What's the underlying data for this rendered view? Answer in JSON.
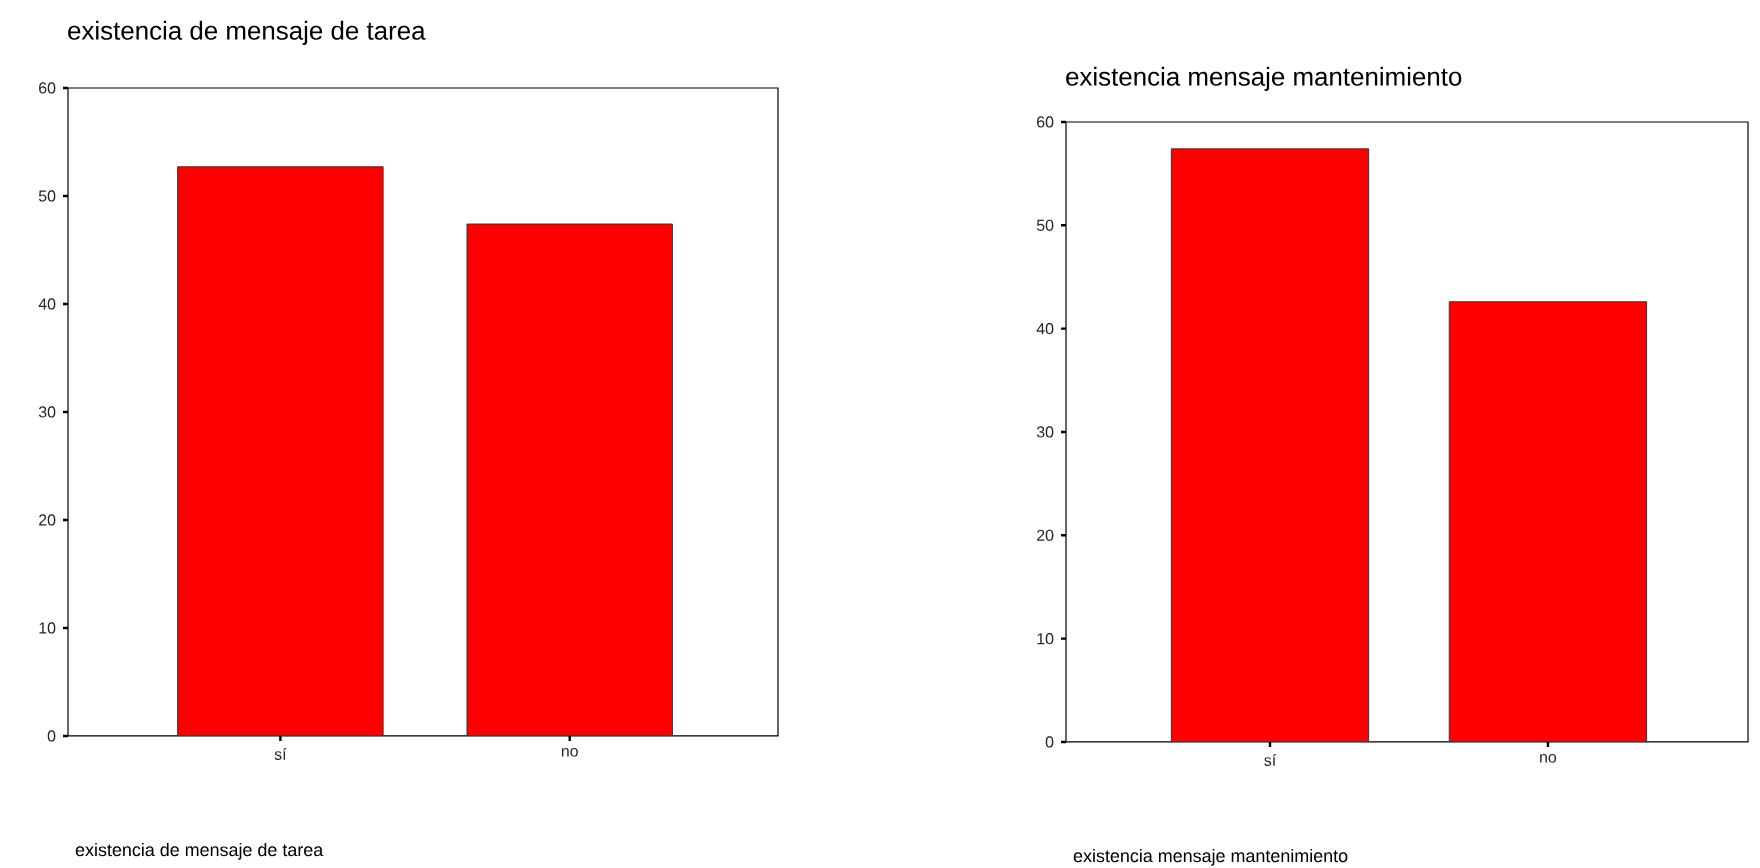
{
  "chart_data": [
    {
      "type": "bar",
      "title": "existencia de mensaje de tarea",
      "xlabel": "existencia de mensaje de tarea",
      "categories": [
        "sí",
        "no"
      ],
      "values": [
        52.7,
        47.4
      ],
      "color": "#ff0000",
      "ylim": [
        0,
        60
      ],
      "yticks": [
        0,
        10,
        20,
        30,
        40,
        50,
        60
      ],
      "grid": false
    },
    {
      "type": "bar",
      "title": "existencia mensaje mantenimiento",
      "xlabel": "existencia mensaje mantenimiento",
      "categories": [
        "sí",
        "no"
      ],
      "values": [
        57.4,
        42.6
      ],
      "color": "#ff0000",
      "ylim": [
        0,
        60
      ],
      "yticks": [
        0,
        10,
        20,
        30,
        40,
        50,
        60
      ],
      "grid": false
    }
  ]
}
